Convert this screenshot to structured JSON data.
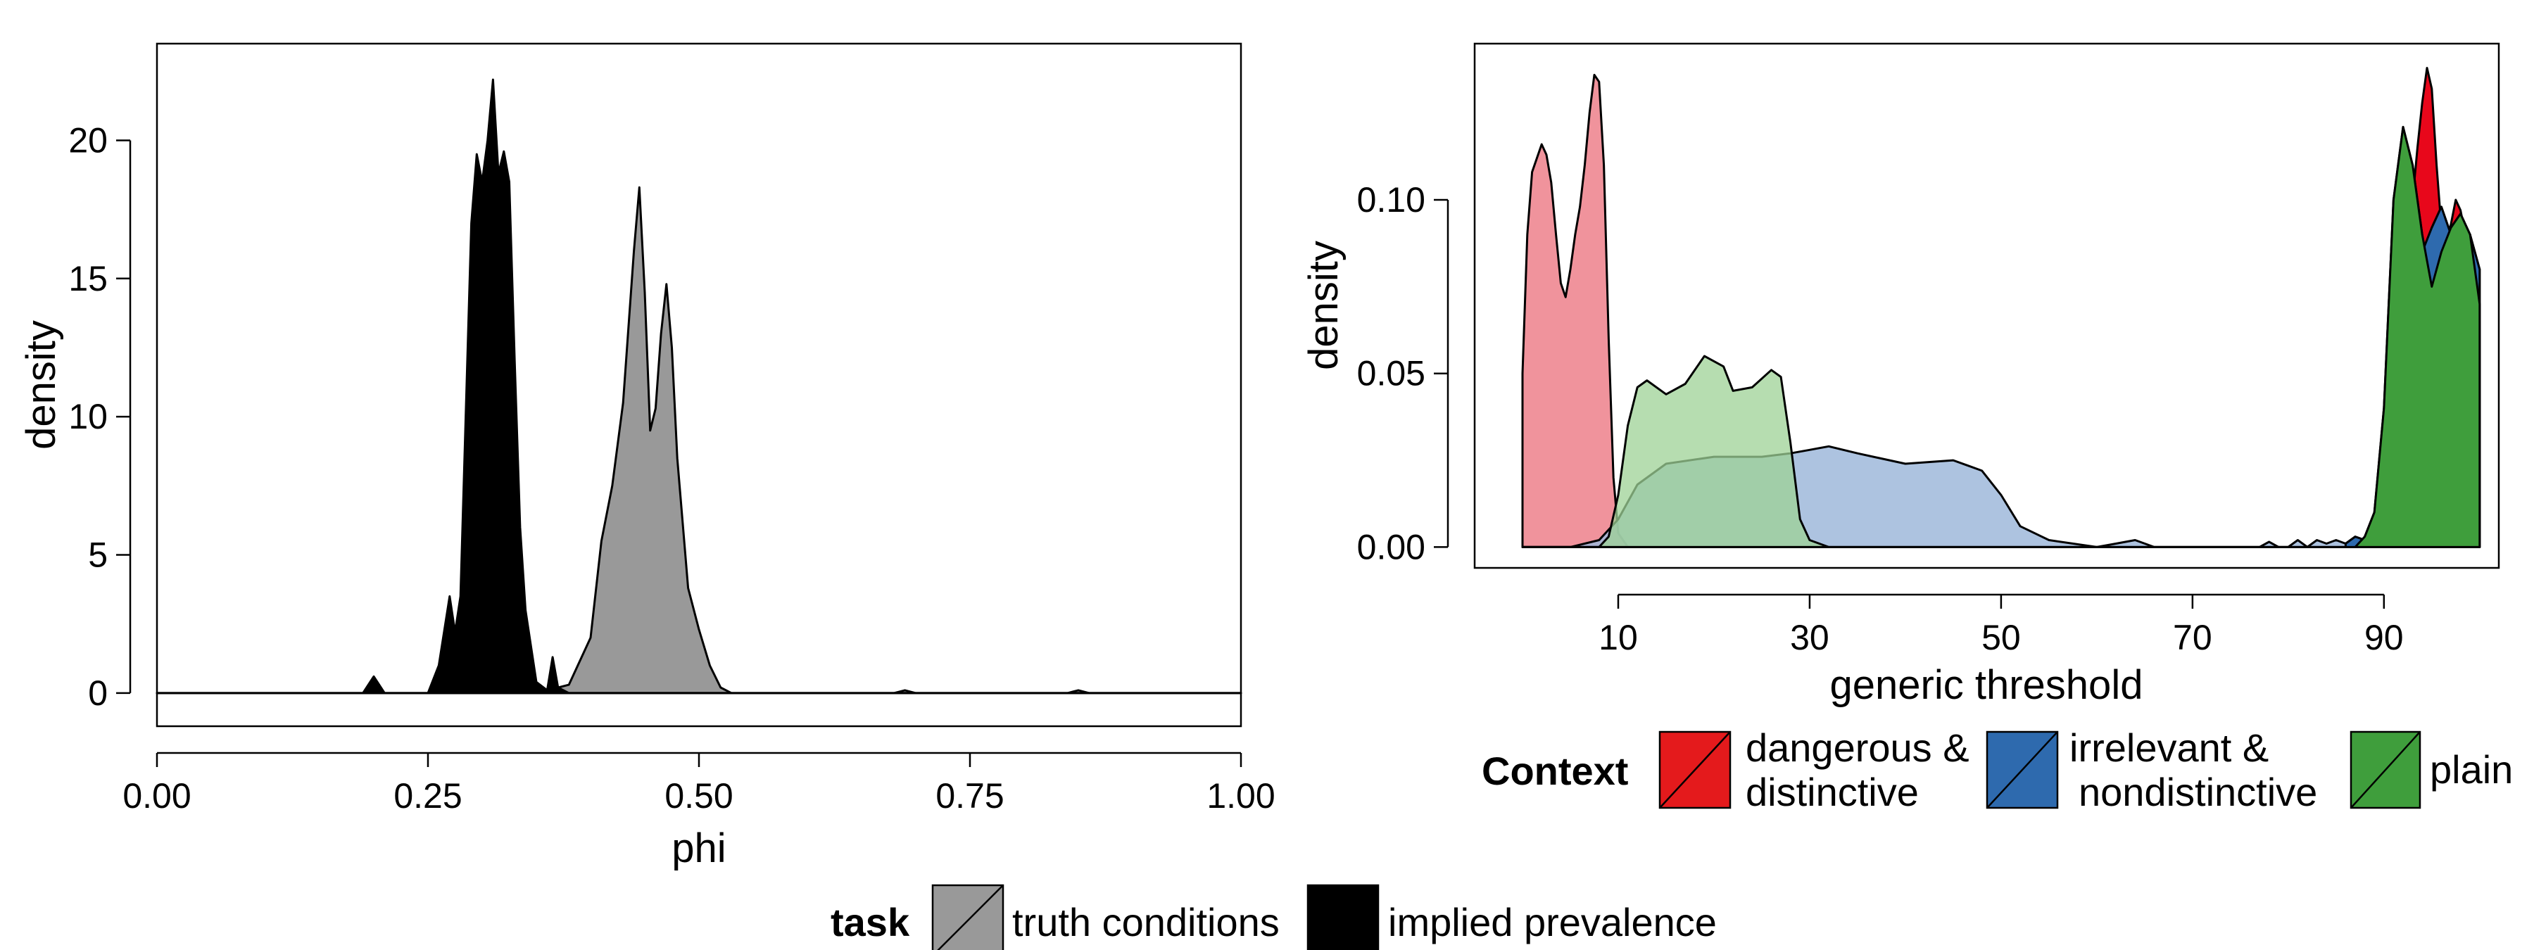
{
  "chart_data": [
    {
      "type": "area",
      "xlabel": "phi",
      "ylabel": "density",
      "xlim": [
        0,
        1
      ],
      "ylim": [
        -1.2,
        23.5
      ],
      "x_ticks": [
        "0.00",
        "0.25",
        "0.50",
        "0.75",
        "1.00"
      ],
      "y_ticks": [
        "0",
        "5",
        "10",
        "15",
        "20"
      ],
      "legend": {
        "title": "task",
        "placement": "bottom",
        "entries": [
          {
            "label": "truth conditions",
            "color": "#999999"
          },
          {
            "label": "implied prevalence",
            "color": "#000000"
          }
        ]
      },
      "series": [
        {
          "name": "truth conditions",
          "color": "#999999",
          "x": [
            0,
            0.35,
            0.38,
            0.4,
            0.41,
            0.42,
            0.43,
            0.44,
            0.445,
            0.45,
            0.455,
            0.46,
            0.465,
            0.47,
            0.475,
            0.48,
            0.49,
            0.5,
            0.51,
            0.52,
            0.53,
            0.55,
            0.68,
            0.69,
            0.7,
            0.84,
            0.85,
            0.86,
            1.0
          ],
          "y": [
            0,
            0,
            0.3,
            2.0,
            5.5,
            7.5,
            10.5,
            16.0,
            18.3,
            14.5,
            9.5,
            10.3,
            13.0,
            14.8,
            12.5,
            8.5,
            3.8,
            2.3,
            1.0,
            0.2,
            0,
            0,
            0,
            0.1,
            0,
            0,
            0.1,
            0,
            0
          ]
        },
        {
          "name": "implied prevalence",
          "color": "#000000",
          "x": [
            0,
            0.19,
            0.2,
            0.21,
            0.25,
            0.26,
            0.27,
            0.275,
            0.28,
            0.29,
            0.295,
            0.3,
            0.305,
            0.31,
            0.315,
            0.32,
            0.325,
            0.33,
            0.335,
            0.34,
            0.35,
            0.36,
            0.365,
            0.37,
            0.38,
            0.4,
            1.0
          ],
          "y": [
            0,
            0,
            0.6,
            0,
            0,
            1.0,
            3.5,
            2.2,
            3.5,
            17.0,
            19.5,
            18.5,
            20.0,
            22.2,
            18.8,
            19.6,
            18.5,
            12.0,
            6.0,
            3.0,
            0.4,
            0.1,
            1.3,
            0.2,
            0,
            0,
            0
          ]
        }
      ]
    },
    {
      "type": "area",
      "xlabel": "generic threshold",
      "ylabel": "density",
      "xlim": [
        -5,
        102
      ],
      "ylim": [
        -0.006,
        0.145
      ],
      "x_ticks": [
        "10",
        "30",
        "50",
        "70",
        "90"
      ],
      "y_ticks": [
        "0.00",
        "0.05",
        "0.10"
      ],
      "legend": {
        "title": "Context",
        "placement": "bottom",
        "entries": [
          {
            "label": "dangerous & distinctive",
            "color": "#E41A1C"
          },
          {
            "label": "irrelevant & nondistinctive",
            "color": "#377EB8"
          },
          {
            "label": "plain",
            "color": "#4DAF4A"
          }
        ]
      },
      "series": [
        {
          "name": "dangerous & distinctive",
          "color": "#E41A1C",
          "x": [
            0,
            88,
            89,
            90,
            91,
            92,
            93,
            93.5,
            94,
            94.5,
            95,
            95.5,
            96,
            96.5,
            97,
            97.5,
            98,
            98.5,
            99,
            100
          ],
          "y": [
            0,
            0,
            0.004,
            0.02,
            0.06,
            0.09,
            0.1,
            0.115,
            0.128,
            0.138,
            0.132,
            0.11,
            0.092,
            0.088,
            0.093,
            0.1,
            0.097,
            0.09,
            0.08,
            0.065
          ]
        },
        {
          "name": "irrelevant & nondistinctive",
          "color": "#377EB8",
          "x": [
            0,
            5,
            8,
            10,
            12,
            15,
            20,
            25,
            28,
            30,
            32,
            35,
            40,
            45,
            48,
            50,
            52,
            55,
            60,
            62,
            64,
            66,
            70,
            77,
            78,
            79,
            80,
            81,
            82,
            83,
            84,
            85,
            86,
            87,
            88,
            89,
            90,
            91,
            92,
            93,
            94,
            95,
            96,
            97,
            98,
            99,
            100
          ],
          "y": [
            0,
            0,
            0.002,
            0.008,
            0.018,
            0.024,
            0.026,
            0.026,
            0.027,
            0.028,
            0.029,
            0.027,
            0.024,
            0.025,
            0.022,
            0.015,
            0.006,
            0.002,
            0,
            0.001,
            0.002,
            0,
            0,
            0,
            0.0015,
            0,
            0,
            0.002,
            0,
            0.002,
            0.001,
            0.002,
            0.001,
            0.003,
            0.002,
            0.008,
            0.025,
            0.05,
            0.07,
            0.082,
            0.085,
            0.092,
            0.098,
            0.09,
            0.094,
            0.09,
            0.08
          ]
        },
        {
          "name": "plain",
          "color": "#4DAF4A",
          "x": [
            0,
            8,
            9,
            10,
            11,
            12,
            13,
            15,
            17,
            19,
            21,
            22,
            24,
            26,
            27,
            28,
            29,
            30,
            32,
            35,
            87,
            88,
            89,
            90,
            91,
            92,
            93,
            94,
            95,
            96,
            97,
            98,
            99,
            100
          ],
          "y": [
            0,
            0,
            0.003,
            0.015,
            0.035,
            0.046,
            0.048,
            0.044,
            0.047,
            0.055,
            0.052,
            0.045,
            0.046,
            0.051,
            0.049,
            0.03,
            0.008,
            0.002,
            0,
            0,
            0,
            0.003,
            0.01,
            0.04,
            0.1,
            0.121,
            0.11,
            0.09,
            0.075,
            0.085,
            0.092,
            0.096,
            0.09,
            0.07
          ]
        },
        {
          "name": "dangerous & distinctive (low)",
          "color": "#F4A0A8",
          "x": [
            0,
            0.5,
            1,
            2,
            2.5,
            3,
            3.5,
            4,
            4.5,
            5,
            5.5,
            6,
            6.5,
            7,
            7.5,
            8,
            8.5,
            9,
            9.5,
            10,
            11
          ],
          "y": [
            0.05,
            0.09,
            0.108,
            0.116,
            0.113,
            0.105,
            0.09,
            0.076,
            0.072,
            0.08,
            0.09,
            0.098,
            0.11,
            0.125,
            0.136,
            0.134,
            0.11,
            0.06,
            0.02,
            0.004,
            0
          ]
        }
      ]
    }
  ]
}
